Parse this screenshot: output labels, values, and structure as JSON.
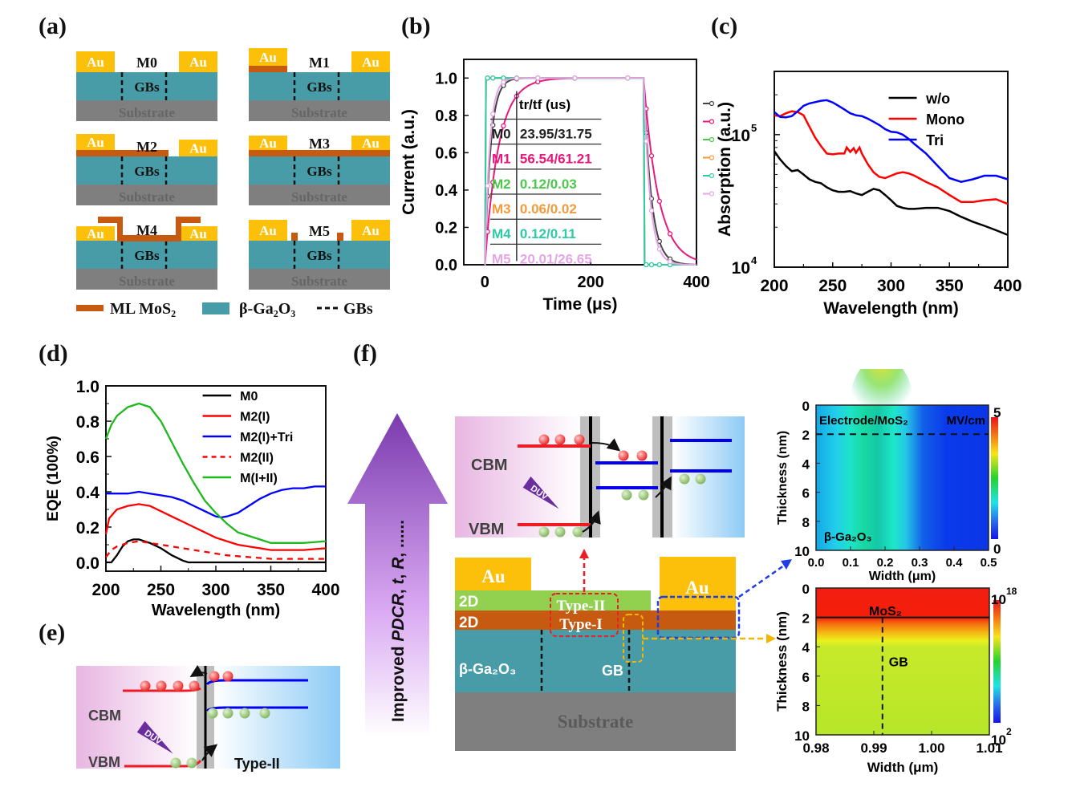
{
  "panels": {
    "a": {
      "label": "(a)",
      "devices": [
        {
          "name": "M0",
          "mos2": "none"
        },
        {
          "name": "M1",
          "mos2": "under-left-electrode"
        },
        {
          "name": "M2",
          "mos2": "left-electrode-to-gap"
        },
        {
          "name": "M3",
          "mos2": "full-layer"
        },
        {
          "name": "M4",
          "mos2": "over-electrodes"
        },
        {
          "name": "M5",
          "mos2": "edge-stubs"
        }
      ],
      "electrode_label": "Au",
      "gb_label": "GBs",
      "substrate_label": "Substrate",
      "legend": {
        "mos2": "ML MoS₂",
        "ga2o3": "β-Ga₂O₃",
        "gbs": "GBs"
      },
      "colors": {
        "au": "#FDC00A",
        "mos2": "#C65A11",
        "ga2o3": "#479CA7",
        "substrate": "#7F7F7F"
      }
    },
    "b": {
      "label": "(b)",
      "table_header": "tr/tf (us)",
      "table": [
        {
          "device": "M0",
          "value": "23.95/31.75",
          "color": "#222222"
        },
        {
          "device": "M1",
          "value": "56.54/61.21",
          "color": "#E8197A"
        },
        {
          "device": "M2",
          "value": "0.12/0.03",
          "color": "#4BC84B"
        },
        {
          "device": "M3",
          "value": "0.06/0.02",
          "color": "#F39A3C"
        },
        {
          "device": "M4",
          "value": "0.12/0.11",
          "color": "#2ECBA6"
        },
        {
          "device": "M5",
          "value": "20.01/26.65",
          "color": "#E6A6E6"
        }
      ]
    },
    "c": {
      "label": "(c)"
    },
    "d": {
      "label": "(d)"
    },
    "e": {
      "label": "(e)",
      "cbm": "CBM",
      "vbm": "VBM",
      "duv": "DUV",
      "type": "Type-II"
    },
    "f": {
      "label": "(f)",
      "arrow_text_1": "Improved ",
      "arrow_text_2": "PDCR",
      "arrow_text_3": ", ",
      "arrow_text_4": "t",
      "arrow_text_5": ", ",
      "arrow_text_6": "R",
      "arrow_text_7": ", ......",
      "band": {
        "cbm": "CBM",
        "vbm": "VBM",
        "duv": "DUV"
      },
      "device": {
        "au_left": "Au",
        "au_right": "Au",
        "layer_2d_top": "2D",
        "layer_2d_bottom": "2D",
        "type2": "Type-II",
        "type1": "Type-I",
        "ga2o3": "β-Ga₂O₃",
        "gb": "GB",
        "substrate": "Substrate"
      },
      "colors": {
        "au": "#FDC00A",
        "layer_green": "#92D050",
        "layer_orange": "#C65A11",
        "ga2o3": "#479CA7",
        "substrate": "#7F7F7F"
      }
    }
  },
  "chart_data": [
    {
      "id": "b",
      "type": "line",
      "title": "",
      "xlabel": "Time (μs)",
      "ylabel": "Current (a.u.)",
      "xlim": [
        -40,
        400
      ],
      "ylim": [
        0,
        1.1
      ],
      "xticks": [
        0,
        200,
        400
      ],
      "yticks": [
        0.0,
        0.2,
        0.4,
        0.6,
        0.8,
        1.0
      ],
      "ytick_labels": [
        "0.0",
        "0.2",
        "0.4",
        "0.6",
        "0.8",
        "1.0"
      ],
      "legend_position": "right-outside",
      "series": [
        {
          "name": "M0",
          "color": "#444444",
          "tr": 23.95,
          "tf": 31.75
        },
        {
          "name": "M1",
          "color": "#E8197A",
          "tr": 56.54,
          "tf": 61.21
        },
        {
          "name": "M2",
          "color": "#4BC84B",
          "tr": 0.12,
          "tf": 0.03
        },
        {
          "name": "M3",
          "color": "#F39A3C",
          "tr": 0.06,
          "tf": 0.02
        },
        {
          "name": "M4",
          "color": "#2ECBA6",
          "tr": 0.12,
          "tf": 0.11
        },
        {
          "name": "M5",
          "color": "#E6A6E6",
          "tr": 20.01,
          "tf": 26.65
        }
      ],
      "pulse_on": 0,
      "pulse_off": 300
    },
    {
      "id": "c",
      "type": "line",
      "xlabel": "Wavelength (nm)",
      "ylabel": "Absorption (a.u.)",
      "yscale": "log",
      "xlim": [
        200,
        400
      ],
      "ylim": [
        10000,
        300000
      ],
      "xticks": [
        200,
        250,
        300,
        350,
        400
      ],
      "ytick_labels": [
        "10⁴",
        "10⁵"
      ],
      "legend_position": "top-right",
      "series": [
        {
          "name": "w/o",
          "color": "#000000",
          "x": [
            200,
            205,
            210,
            215,
            220,
            225,
            230,
            235,
            240,
            245,
            250,
            255,
            260,
            265,
            270,
            275,
            280,
            285,
            290,
            295,
            300,
            305,
            310,
            315,
            320,
            330,
            340,
            350,
            360,
            370,
            380,
            390,
            400
          ],
          "y": [
            75000,
            65000,
            58000,
            53000,
            54000,
            50000,
            46000,
            44000,
            43000,
            40000,
            38000,
            37000,
            37000,
            37500,
            36000,
            35000,
            37000,
            39000,
            38000,
            35000,
            32000,
            29000,
            28000,
            27500,
            27500,
            28000,
            28000,
            26500,
            24000,
            22000,
            20500,
            19000,
            17500
          ]
        },
        {
          "name": "Mono",
          "color": "#FF0000",
          "x": [
            200,
            205,
            210,
            215,
            220,
            225,
            230,
            235,
            240,
            245,
            250,
            255,
            260,
            262,
            265,
            268,
            270,
            273,
            275,
            280,
            285,
            290,
            295,
            300,
            305,
            310,
            315,
            320,
            330,
            340,
            350,
            360,
            370,
            380,
            390,
            400
          ],
          "y": [
            140000,
            138000,
            145000,
            150000,
            148000,
            140000,
            115000,
            95000,
            82000,
            72000,
            71000,
            72000,
            72000,
            80000,
            74000,
            79000,
            73000,
            80000,
            72000,
            60000,
            52000,
            48000,
            47000,
            49000,
            51000,
            52000,
            51000,
            49000,
            44000,
            40000,
            35000,
            31000,
            31000,
            32000,
            32500,
            30000
          ]
        },
        {
          "name": "Tri",
          "color": "#0000FF",
          "x": [
            200,
            205,
            210,
            215,
            220,
            225,
            230,
            235,
            240,
            245,
            250,
            255,
            260,
            265,
            270,
            275,
            280,
            285,
            290,
            295,
            300,
            305,
            310,
            315,
            320,
            330,
            340,
            350,
            360,
            370,
            380,
            390,
            400
          ],
          "y": [
            148000,
            136000,
            135000,
            138000,
            150000,
            165000,
            172000,
            176000,
            180000,
            182000,
            175000,
            165000,
            155000,
            145000,
            140000,
            138000,
            132000,
            125000,
            118000,
            110000,
            105000,
            104000,
            100000,
            93000,
            85000,
            72000,
            58000,
            47000,
            44000,
            46000,
            49000,
            49000,
            46000
          ]
        }
      ]
    },
    {
      "id": "d",
      "type": "line",
      "xlabel": "Wavelength (nm)",
      "ylabel": "EQE (100%)",
      "xlim": [
        200,
        400
      ],
      "ylim": [
        -0.05,
        1.0
      ],
      "xticks": [
        200,
        250,
        300,
        350,
        400
      ],
      "yticks": [
        0.0,
        0.2,
        0.4,
        0.6,
        0.8,
        1.0
      ],
      "ytick_labels": [
        "0.0",
        "0.2",
        "0.4",
        "0.6",
        "0.8",
        "1.0"
      ],
      "legend_position": "top-right",
      "series": [
        {
          "name": "M0",
          "color": "#000000",
          "dash": false,
          "x": [
            200,
            205,
            210,
            215,
            220,
            225,
            230,
            240,
            250,
            260,
            270,
            275,
            280,
            300,
            350,
            400
          ],
          "y": [
            0.0,
            0.0,
            0.04,
            0.09,
            0.12,
            0.13,
            0.13,
            0.11,
            0.08,
            0.04,
            0.01,
            0.0,
            0.0,
            0.0,
            0.0,
            0.0
          ]
        },
        {
          "name": "M2(I)",
          "color": "#FF0000",
          "dash": false,
          "x": [
            200,
            203,
            210,
            220,
            230,
            240,
            250,
            260,
            270,
            280,
            290,
            300,
            310,
            320,
            330,
            340,
            350,
            360,
            380,
            400
          ],
          "y": [
            0.16,
            0.25,
            0.3,
            0.32,
            0.33,
            0.32,
            0.29,
            0.26,
            0.23,
            0.2,
            0.17,
            0.14,
            0.12,
            0.1,
            0.09,
            0.08,
            0.07,
            0.07,
            0.07,
            0.08
          ]
        },
        {
          "name": "M2(I)+Tri",
          "color": "#0000FF",
          "dash": false,
          "x": [
            200,
            210,
            220,
            230,
            240,
            250,
            260,
            270,
            280,
            290,
            300,
            305,
            310,
            320,
            330,
            340,
            350,
            360,
            370,
            380,
            390,
            400
          ],
          "y": [
            0.39,
            0.39,
            0.39,
            0.4,
            0.39,
            0.38,
            0.37,
            0.35,
            0.32,
            0.29,
            0.26,
            0.255,
            0.26,
            0.28,
            0.32,
            0.36,
            0.39,
            0.41,
            0.42,
            0.42,
            0.43,
            0.43
          ]
        },
        {
          "name": "M2(II)",
          "color": "#FF0000",
          "dash": true,
          "x": [
            200,
            205,
            210,
            220,
            230,
            240,
            250,
            260,
            270,
            280,
            290,
            300,
            310,
            320,
            330,
            340,
            350,
            370,
            400
          ],
          "y": [
            0.03,
            0.07,
            0.09,
            0.11,
            0.12,
            0.11,
            0.1,
            0.09,
            0.08,
            0.07,
            0.06,
            0.05,
            0.04,
            0.035,
            0.03,
            0.025,
            0.02,
            0.02,
            0.02
          ]
        },
        {
          "name": "M(I+II)",
          "color": "#1DB91D",
          "dash": false,
          "x": [
            200,
            205,
            210,
            220,
            230,
            240,
            250,
            260,
            270,
            280,
            290,
            300,
            310,
            320,
            330,
            340,
            350,
            360,
            380,
            400
          ],
          "y": [
            0.7,
            0.78,
            0.83,
            0.88,
            0.9,
            0.88,
            0.8,
            0.68,
            0.56,
            0.45,
            0.35,
            0.28,
            0.22,
            0.17,
            0.15,
            0.13,
            0.11,
            0.11,
            0.11,
            0.12
          ]
        }
      ]
    },
    {
      "id": "f-top",
      "type": "heatmap",
      "xlabel": "Width (μm)",
      "ylabel": "Thickness (nm)",
      "xlim": [
        0.0,
        0.5
      ],
      "ylim": [
        10,
        0
      ],
      "xticks": [
        "0.0",
        "0.1",
        "0.2",
        "0.3",
        "0.4",
        "0.5"
      ],
      "yticks": [
        "0",
        "2",
        "4",
        "6",
        "8",
        "10"
      ],
      "colorbar": {
        "min": "0",
        "max": "5",
        "unit": "MV/cm"
      },
      "annotations": [
        "Electrode/MoS₂",
        "β-Ga₂O₃"
      ],
      "interface_depth_nm": 2
    },
    {
      "id": "f-bottom",
      "type": "heatmap",
      "xlabel": "Width (μm)",
      "ylabel": "Thickness (nm)",
      "xlim": [
        0.98,
        1.01
      ],
      "ylim": [
        10,
        0
      ],
      "xticks": [
        "0.98",
        "0.99",
        "1.00",
        "1.01"
      ],
      "yticks": [
        "0",
        "2",
        "4",
        "6",
        "8",
        "10"
      ],
      "colorbar": {
        "min": "10",
        "min_exp": "2",
        "max": "10",
        "max_exp": "18"
      },
      "annotations": [
        "MoS₂",
        "GB"
      ],
      "interface_depth_nm": 2,
      "gb_position_um": 0.9915
    }
  ]
}
